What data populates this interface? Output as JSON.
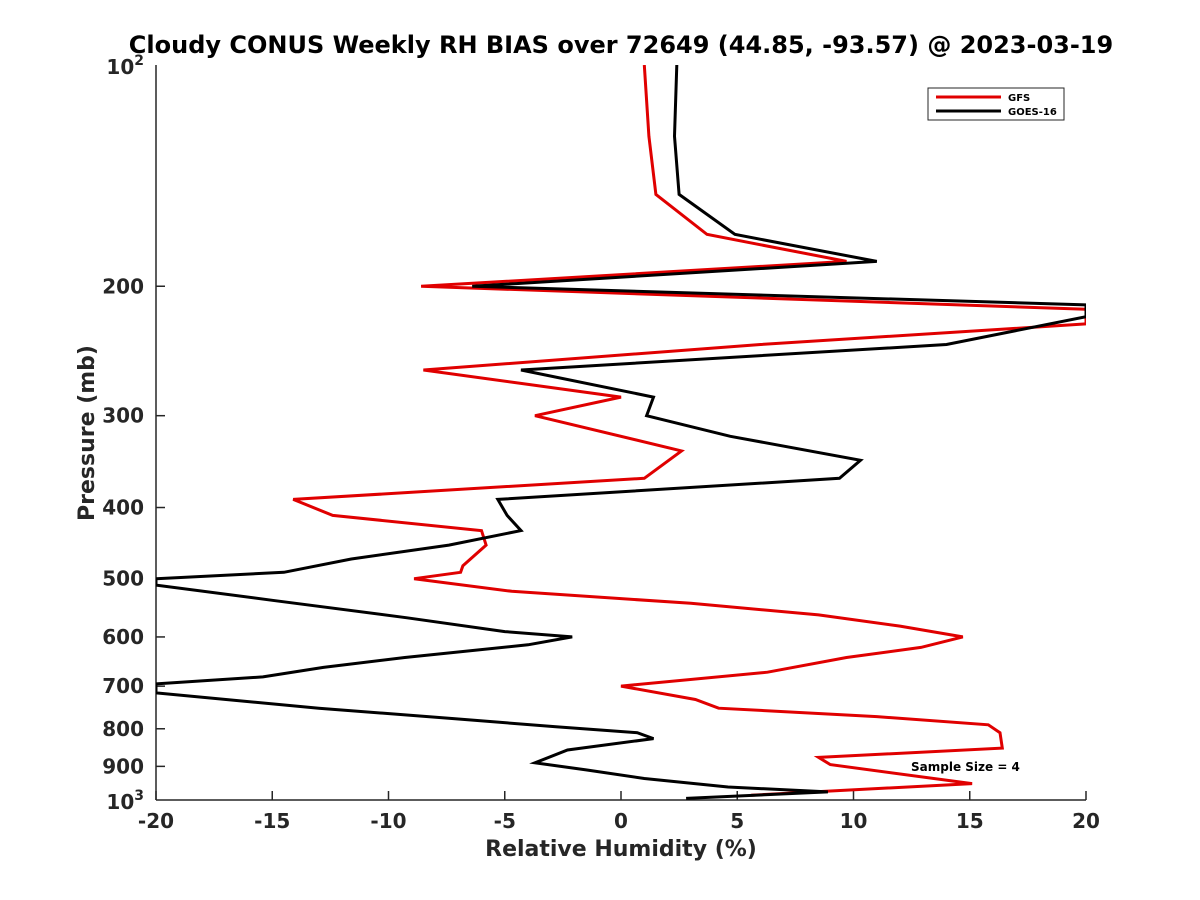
{
  "chart_data": {
    "type": "line",
    "title": "Cloudy CONUS Weekly RH BIAS over 72649 (44.85, -93.57) @ 2023-03-19",
    "xlabel": "Relative Humidity (%)",
    "ylabel": "Pressure (mb)",
    "xlim": [
      -20,
      20
    ],
    "ylim": [
      100,
      1000
    ],
    "yscale": "log",
    "y_reversed": true,
    "x_ticks": [
      -20,
      -15,
      -10,
      -5,
      0,
      5,
      10,
      15,
      20
    ],
    "x_tick_labels": [
      "-20",
      "-15",
      "-10",
      "-5",
      "0",
      "5",
      "10",
      "15",
      "20"
    ],
    "y_ticks": [
      200,
      300,
      400,
      500,
      600,
      700,
      800,
      900
    ],
    "y_tick_labels": [
      "200",
      "300",
      "400",
      "500",
      "600",
      "700",
      "800",
      "900"
    ],
    "y_top_label": {
      "base": "10",
      "exp": "2"
    },
    "y_bottom_label": {
      "base": "10",
      "exp": "3"
    },
    "grid": false,
    "legend_position": "top-right",
    "annotation": "Sample Size = 4",
    "series": [
      {
        "name": "GFS",
        "color": "#e00000",
        "points": [
          [
            1.0,
            100
          ],
          [
            1.2,
            125
          ],
          [
            1.5,
            150
          ],
          [
            3.7,
            170
          ],
          [
            9.7,
            185
          ],
          [
            -8.6,
            200
          ],
          [
            20.0,
            215
          ],
          [
            20.0,
            225
          ],
          [
            6.0,
            240
          ],
          [
            -8.5,
            260
          ],
          [
            0.0,
            283
          ],
          [
            -3.7,
            300
          ],
          [
            2.6,
            335
          ],
          [
            1.0,
            365
          ],
          [
            -14.1,
            390
          ],
          [
            -12.4,
            410
          ],
          [
            -6.0,
            430
          ],
          [
            -5.8,
            450
          ],
          [
            -6.8,
            480
          ],
          [
            -6.9,
            490
          ],
          [
            -8.9,
            500
          ],
          [
            -4.7,
            520
          ],
          [
            3.0,
            540
          ],
          [
            8.5,
            560
          ],
          [
            12.0,
            580
          ],
          [
            14.7,
            600
          ],
          [
            12.9,
            620
          ],
          [
            9.7,
            640
          ],
          [
            6.3,
            670
          ],
          [
            0.0,
            700
          ],
          [
            3.2,
            730
          ],
          [
            4.2,
            750
          ],
          [
            11.0,
            770
          ],
          [
            15.8,
            790
          ],
          [
            16.3,
            810
          ],
          [
            16.4,
            850
          ],
          [
            8.5,
            875
          ],
          [
            9.0,
            895
          ],
          [
            15.1,
            950
          ],
          [
            5.6,
            985
          ]
        ]
      },
      {
        "name": "GOES-16",
        "color": "#000000",
        "points": [
          [
            2.4,
            100
          ],
          [
            2.3,
            125
          ],
          [
            2.5,
            150
          ],
          [
            4.9,
            170
          ],
          [
            11.0,
            185
          ],
          [
            -6.4,
            200
          ],
          [
            20.0,
            212
          ],
          [
            20.0,
            220
          ],
          [
            14.0,
            240
          ],
          [
            -4.3,
            260
          ],
          [
            1.4,
            283
          ],
          [
            1.1,
            300
          ],
          [
            4.7,
            320
          ],
          [
            10.3,
            345
          ],
          [
            9.4,
            365
          ],
          [
            -5.3,
            390
          ],
          [
            -4.9,
            410
          ],
          [
            -4.3,
            430
          ],
          [
            -7.4,
            450
          ],
          [
            -11.6,
            470
          ],
          [
            -14.5,
            490
          ],
          [
            -20.0,
            500
          ],
          [
            -20.0,
            510
          ],
          [
            -15.0,
            535
          ],
          [
            -9.2,
            565
          ],
          [
            -5.0,
            590
          ],
          [
            -2.1,
            600
          ],
          [
            -4.0,
            615
          ],
          [
            -9.3,
            640
          ],
          [
            -12.8,
            660
          ],
          [
            -15.4,
            680
          ],
          [
            -20.0,
            695
          ],
          [
            -20.0,
            715
          ],
          [
            -13.0,
            750
          ],
          [
            -7.2,
            775
          ],
          [
            -2.8,
            795
          ],
          [
            0.7,
            810
          ],
          [
            1.4,
            825
          ],
          [
            -2.3,
            855
          ],
          [
            -3.7,
            890
          ],
          [
            -1.5,
            910
          ],
          [
            1.0,
            935
          ],
          [
            4.6,
            960
          ],
          [
            8.9,
            975
          ],
          [
            2.8,
            995
          ]
        ]
      }
    ]
  }
}
